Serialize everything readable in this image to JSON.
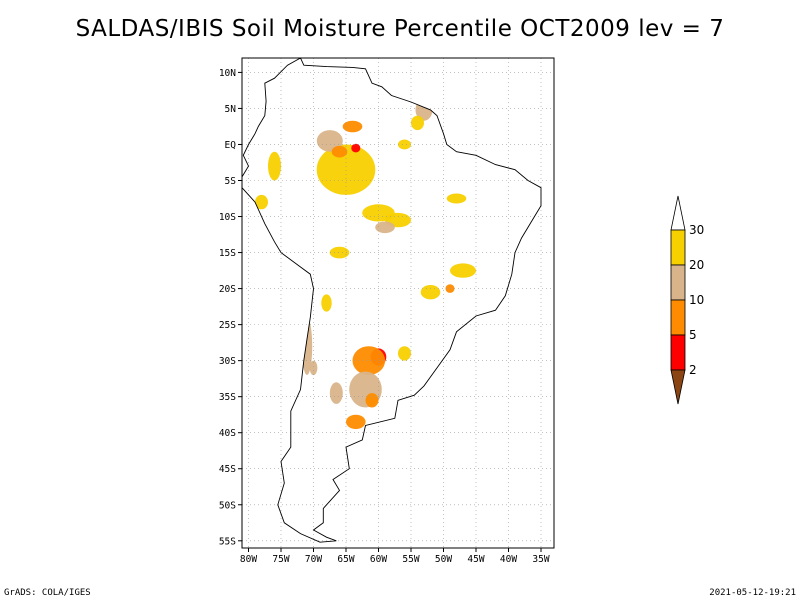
{
  "title": "SALDAS/IBIS Soil Moisture Percentile OCT2009 lev = 7",
  "footer": {
    "left": "GrADS: COLA/IGES",
    "right": "2021-05-12-19:21"
  },
  "map": {
    "lon_range": [
      -81,
      -33
    ],
    "lat_range": [
      -56,
      12
    ],
    "lon_ticks": [
      {
        "value": -80,
        "label": "80W"
      },
      {
        "value": -75,
        "label": "75W"
      },
      {
        "value": -70,
        "label": "70W"
      },
      {
        "value": -65,
        "label": "65W"
      },
      {
        "value": -60,
        "label": "60W"
      },
      {
        "value": -55,
        "label": "55W"
      },
      {
        "value": -50,
        "label": "50W"
      },
      {
        "value": -45,
        "label": "45W"
      },
      {
        "value": -40,
        "label": "40W"
      },
      {
        "value": -35,
        "label": "35W"
      }
    ],
    "lat_ticks": [
      {
        "value": 10,
        "label": "10N"
      },
      {
        "value": 5,
        "label": "5N"
      },
      {
        "value": 0,
        "label": "EQ"
      },
      {
        "value": -5,
        "label": "5S"
      },
      {
        "value": -10,
        "label": "10S"
      },
      {
        "value": -15,
        "label": "15S"
      },
      {
        "value": -20,
        "label": "20S"
      },
      {
        "value": -25,
        "label": "25S"
      },
      {
        "value": -30,
        "label": "30S"
      },
      {
        "value": -35,
        "label": "35S"
      },
      {
        "value": -40,
        "label": "40S"
      },
      {
        "value": -45,
        "label": "45S"
      },
      {
        "value": -50,
        "label": "50S"
      },
      {
        "value": -55,
        "label": "55S"
      }
    ],
    "grid": true,
    "region": "South America"
  },
  "colorbar": {
    "levels": [
      {
        "label": "30",
        "color": "#ffffff"
      },
      {
        "label": "20",
        "color": "#f7d000"
      },
      {
        "label": "10",
        "color": "#d9b48a"
      },
      {
        "label": "5",
        "color": "#ff8c00"
      },
      {
        "label": "2",
        "color": "#ff0000"
      }
    ],
    "bottom_color": "#8b4513",
    "top_color": "#ffffff"
  },
  "colors": {
    "p30": "#f7d000",
    "p20": "#d9b48a",
    "p10": "#ff8c00",
    "p5": "#ff0000",
    "p2": "#8b4513"
  },
  "anomaly_patches": [
    {
      "lon": -65,
      "lat": -3.5,
      "rx": 4.5,
      "ry": 3.5,
      "cat": "p30"
    },
    {
      "lon": -67.5,
      "lat": 0.5,
      "rx": 2,
      "ry": 1.5,
      "cat": "p20"
    },
    {
      "lon": -66,
      "lat": -1,
      "rx": 1.2,
      "ry": 0.8,
      "cat": "p10"
    },
    {
      "lon": -63.5,
      "lat": -0.5,
      "rx": 0.7,
      "ry": 0.6,
      "cat": "p5"
    },
    {
      "lon": -64,
      "lat": 2.5,
      "rx": 1.5,
      "ry": 0.8,
      "cat": "p10"
    },
    {
      "lon": -53,
      "lat": 4.8,
      "rx": 1.3,
      "ry": 1.5,
      "cat": "p20"
    },
    {
      "lon": -54,
      "lat": 3,
      "rx": 1,
      "ry": 1,
      "cat": "p30"
    },
    {
      "lon": -60,
      "lat": -9.5,
      "rx": 2.5,
      "ry": 1.2,
      "cat": "p30"
    },
    {
      "lon": -57,
      "lat": -10.5,
      "rx": 2,
      "ry": 1,
      "cat": "p30"
    },
    {
      "lon": -59,
      "lat": -11.5,
      "rx": 1.5,
      "ry": 0.8,
      "cat": "p20"
    },
    {
      "lon": -76,
      "lat": -3,
      "rx": 1,
      "ry": 2,
      "cat": "p30"
    },
    {
      "lon": -47,
      "lat": -17.5,
      "rx": 2,
      "ry": 1,
      "cat": "p30"
    },
    {
      "lon": -49,
      "lat": -20,
      "rx": 0.7,
      "ry": 0.6,
      "cat": "p10"
    },
    {
      "lon": -71,
      "lat": -28,
      "rx": 0.8,
      "ry": 4,
      "cat": "p20"
    },
    {
      "lon": -60,
      "lat": -29.5,
      "rx": 1.2,
      "ry": 1.2,
      "cat": "p5"
    },
    {
      "lon": -61.5,
      "lat": -30,
      "rx": 2.5,
      "ry": 2,
      "cat": "p10"
    },
    {
      "lon": -62,
      "lat": -34,
      "rx": 2.5,
      "ry": 2.5,
      "cat": "p20"
    },
    {
      "lon": -61,
      "lat": -35.5,
      "rx": 1,
      "ry": 1,
      "cat": "p10"
    },
    {
      "lon": -63.5,
      "lat": -38.5,
      "rx": 1.5,
      "ry": 1,
      "cat": "p10"
    },
    {
      "lon": -66.5,
      "lat": -34.5,
      "rx": 1,
      "ry": 1.5,
      "cat": "p20"
    },
    {
      "lon": -70,
      "lat": -31,
      "rx": 0.6,
      "ry": 1,
      "cat": "p20"
    },
    {
      "lon": -52,
      "lat": -20.5,
      "rx": 1.5,
      "ry": 1,
      "cat": "p30"
    },
    {
      "lon": -78,
      "lat": -8,
      "rx": 1,
      "ry": 1,
      "cat": "p30"
    },
    {
      "lon": -66,
      "lat": -15,
      "rx": 1.5,
      "ry": 0.8,
      "cat": "p30"
    },
    {
      "lon": -56,
      "lat": -29,
      "rx": 1,
      "ry": 1,
      "cat": "p30"
    },
    {
      "lon": -48,
      "lat": -7.5,
      "rx": 1.5,
      "ry": 0.7,
      "cat": "p30"
    },
    {
      "lon": -56,
      "lat": 0,
      "rx": 1,
      "ry": 0.7,
      "cat": "p30"
    },
    {
      "lon": -68,
      "lat": -22,
      "rx": 0.8,
      "ry": 1.2,
      "cat": "p30"
    }
  ]
}
